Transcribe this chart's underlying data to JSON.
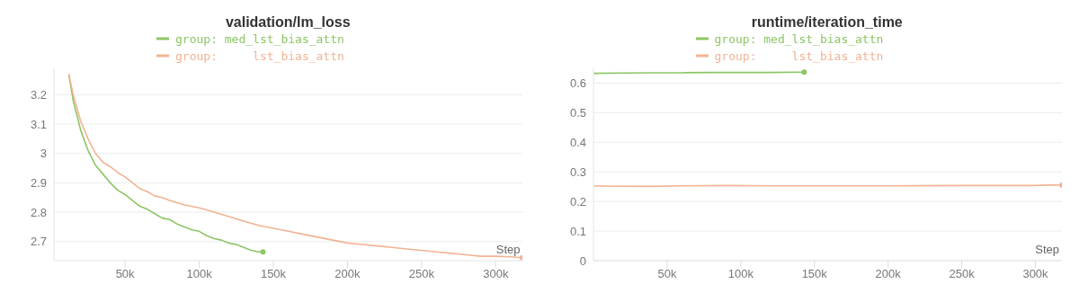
{
  "chart_data": [
    {
      "type": "line",
      "title": "validation/lm_loss",
      "xlabel": "Step",
      "legend": "top",
      "grid": "y",
      "marker": "none",
      "line_style": "solid",
      "xlim": [
        2000,
        318000
      ],
      "xticks": [
        {
          "value": 50000,
          "label": "50k"
        },
        {
          "value": 100000,
          "label": "100k"
        },
        {
          "value": 150000,
          "label": "150k"
        },
        {
          "value": 200000,
          "label": "200k"
        },
        {
          "value": 250000,
          "label": "250k"
        },
        {
          "value": 300000,
          "label": "300k"
        }
      ],
      "ylim": [
        2.635,
        3.29
      ],
      "yticks": [
        2.7,
        2.8,
        2.9,
        3,
        3.1,
        3.2
      ],
      "series": [
        {
          "name": "group: med_lst_bias_attn",
          "color": "#8cc665",
          "x": [
            12000,
            15000,
            20000,
            25000,
            30000,
            35000,
            40000,
            45000,
            50000,
            55000,
            60000,
            65000,
            70000,
            75000,
            80000,
            85000,
            90000,
            95000,
            100000,
            105000,
            110000,
            115000,
            120000,
            125000,
            130000,
            135000,
            140000,
            143000
          ],
          "values": [
            3.27,
            3.18,
            3.08,
            3.01,
            2.96,
            2.93,
            2.9,
            2.875,
            2.86,
            2.84,
            2.82,
            2.81,
            2.795,
            2.78,
            2.775,
            2.76,
            2.75,
            2.74,
            2.735,
            2.72,
            2.71,
            2.705,
            2.695,
            2.69,
            2.68,
            2.67,
            2.665,
            2.665
          ]
        },
        {
          "name": "group:     lst_bias_attn",
          "color": "#f2b393",
          "x": [
            12000,
            15000,
            20000,
            25000,
            30000,
            35000,
            40000,
            45000,
            50000,
            55000,
            60000,
            65000,
            70000,
            75000,
            80000,
            90000,
            100000,
            110000,
            120000,
            130000,
            140000,
            150000,
            160000,
            170000,
            180000,
            190000,
            200000,
            210000,
            220000,
            230000,
            240000,
            250000,
            260000,
            270000,
            280000,
            290000,
            300000,
            310000,
            318000
          ],
          "values": [
            3.27,
            3.2,
            3.11,
            3.05,
            3.0,
            2.97,
            2.955,
            2.935,
            2.92,
            2.9,
            2.88,
            2.87,
            2.855,
            2.85,
            2.84,
            2.825,
            2.815,
            2.8,
            2.785,
            2.77,
            2.755,
            2.745,
            2.735,
            2.725,
            2.715,
            2.705,
            2.695,
            2.69,
            2.685,
            2.68,
            2.675,
            2.67,
            2.665,
            2.66,
            2.655,
            2.65,
            2.65,
            2.648,
            2.645
          ]
        }
      ]
    },
    {
      "type": "line",
      "title": "runtime/iteration_time",
      "xlabel": "Step",
      "legend": "top",
      "grid": "y",
      "marker": "none",
      "line_style": "solid",
      "xlim": [
        0,
        318000
      ],
      "xticks": [
        {
          "value": 50000,
          "label": "50k"
        },
        {
          "value": 100000,
          "label": "100k"
        },
        {
          "value": 150000,
          "label": "150k"
        },
        {
          "value": 200000,
          "label": "200k"
        },
        {
          "value": 250000,
          "label": "250k"
        },
        {
          "value": 300000,
          "label": "300k"
        }
      ],
      "ylim": [
        0,
        0.65
      ],
      "yticks": [
        0,
        0.1,
        0.2,
        0.3,
        0.4,
        0.5,
        0.6
      ],
      "series": [
        {
          "name": "group: med_lst_bias_attn",
          "color": "#8cc665",
          "x": [
            0,
            20000,
            40000,
            60000,
            80000,
            100000,
            120000,
            143000
          ],
          "values": [
            0.633,
            0.634,
            0.635,
            0.635,
            0.636,
            0.636,
            0.636,
            0.637
          ]
        },
        {
          "name": "group:     lst_bias_attn",
          "color": "#f2b393",
          "x": [
            0,
            40000,
            60000,
            90000,
            120000,
            150000,
            200000,
            250000,
            300000,
            310000,
            318000
          ],
          "values": [
            0.252,
            0.251,
            0.253,
            0.254,
            0.253,
            0.253,
            0.253,
            0.254,
            0.254,
            0.256,
            0.255
          ]
        }
      ]
    }
  ]
}
